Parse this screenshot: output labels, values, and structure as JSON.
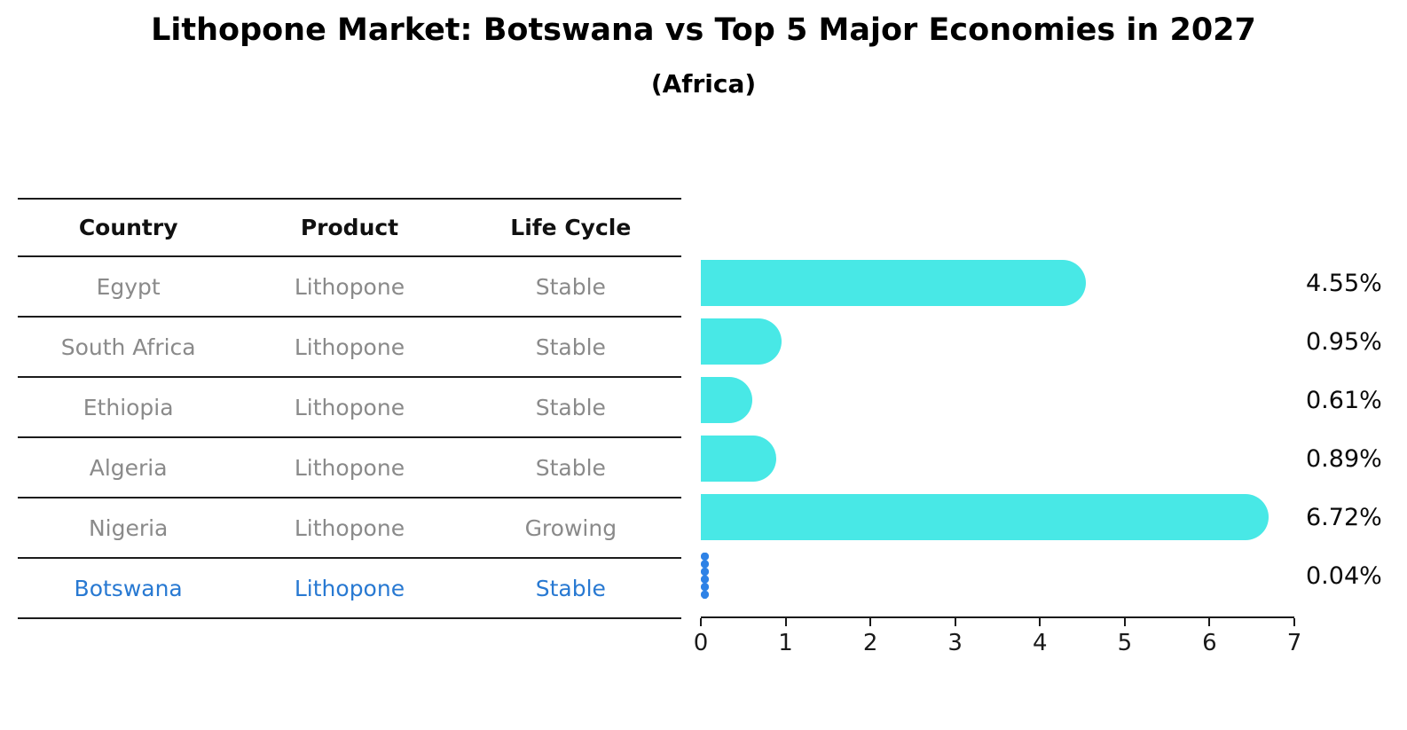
{
  "title": "Lithopone Market: Botswana vs Top 5 Major Economies in 2027",
  "subtitle": "(Africa)",
  "table": {
    "headers": {
      "country": "Country",
      "product": "Product",
      "life_cycle": "Life Cycle"
    },
    "rows": [
      {
        "country": "Egypt",
        "product": "Lithopone",
        "life_cycle": "Stable"
      },
      {
        "country": "South Africa",
        "product": "Lithopone",
        "life_cycle": "Stable"
      },
      {
        "country": "Ethiopia",
        "product": "Lithopone",
        "life_cycle": "Stable"
      },
      {
        "country": "Algeria",
        "product": "Lithopone",
        "life_cycle": "Stable"
      },
      {
        "country": "Nigeria",
        "product": "Lithopone",
        "life_cycle": "Growing"
      },
      {
        "country": "Botswana",
        "product": "Lithopone",
        "life_cycle": "Stable"
      }
    ],
    "highlight_row": "Botswana"
  },
  "chart_data": {
    "type": "bar",
    "orientation": "horizontal",
    "title": "Lithopone Market: Botswana vs Top 5 Major Economies in 2027 (Africa)",
    "categories": [
      "Egypt",
      "South Africa",
      "Ethiopia",
      "Algeria",
      "Nigeria",
      "Botswana"
    ],
    "values": [
      4.55,
      0.95,
      0.61,
      0.89,
      6.72,
      0.04
    ],
    "value_labels": [
      "4.55%",
      "0.95%",
      "0.61%",
      "0.89%",
      "6.72%",
      "0.04%"
    ],
    "xlim": [
      0,
      7
    ],
    "x_ticks": [
      "0",
      "1",
      "2",
      "3",
      "4",
      "5",
      "6",
      "7"
    ],
    "highlight_index": 5,
    "grid": "off",
    "legend": "none"
  },
  "colors": {
    "bar": "#48E8E6",
    "highlight_bar": "#2E82E6",
    "highlight_text": "#2879D2",
    "row_text": "#8A8A8A",
    "axis": "#1A1A1A"
  }
}
